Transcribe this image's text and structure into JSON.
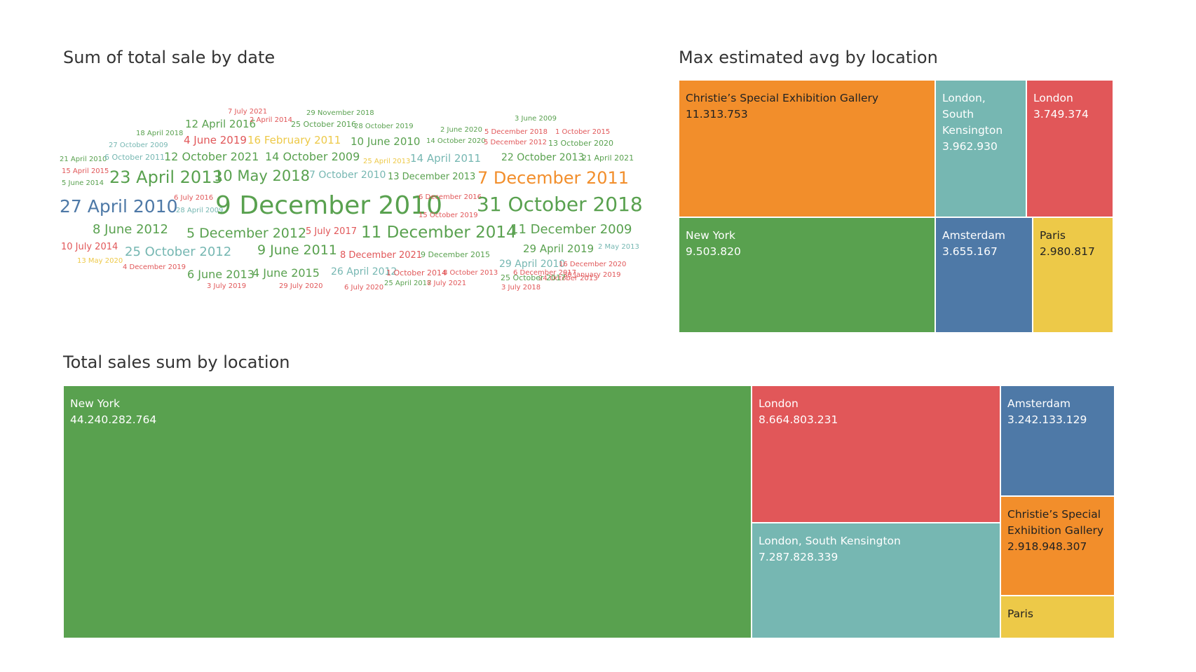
{
  "charts": {
    "word_cloud_title": "Sum of total sale by date",
    "tree1_title": "Max estimated avg by location",
    "tree2_title": "Total sales sum by location"
  },
  "colors": {
    "green": "#59a14f",
    "teal": "#76b7b2",
    "red": "#e15759",
    "orange": "#f28e2b",
    "blue": "#4e79a7",
    "yellow": "#edc948"
  },
  "chart_data": [
    {
      "type": "wordcloud",
      "title": "Sum of total sale by date",
      "words": [
        {
          "text": "7 July 2021",
          "color": "#e15759",
          "size": 10
        },
        {
          "text": "29 November 2018",
          "color": "#59a14f",
          "size": 10
        },
        {
          "text": "3 June 2009",
          "color": "#59a14f",
          "size": 10
        },
        {
          "text": "12 April 2016",
          "color": "#59a14f",
          "size": 15
        },
        {
          "text": "2 April 2014",
          "color": "#e15759",
          "size": 10
        },
        {
          "text": "25 October 2016",
          "color": "#59a14f",
          "size": 11
        },
        {
          "text": "28 October 2019",
          "color": "#59a14f",
          "size": 10
        },
        {
          "text": "18 April 2018",
          "color": "#59a14f",
          "size": 10
        },
        {
          "text": "2 June 2020",
          "color": "#59a14f",
          "size": 10
        },
        {
          "text": "5 December 2018",
          "color": "#e15759",
          "size": 10
        },
        {
          "text": "1 October 2015",
          "color": "#e15759",
          "size": 10
        },
        {
          "text": "4 June 2019",
          "color": "#e15759",
          "size": 15
        },
        {
          "text": "16 February 2011",
          "color": "#edc948",
          "size": 15
        },
        {
          "text": "10 June 2010",
          "color": "#59a14f",
          "size": 15
        },
        {
          "text": "14 October 2020",
          "color": "#59a14f",
          "size": 10
        },
        {
          "text": "5 December 2012",
          "color": "#e15759",
          "size": 10
        },
        {
          "text": "13 October 2020",
          "color": "#59a14f",
          "size": 11
        },
        {
          "text": "27 October 2009",
          "color": "#76b7b2",
          "size": 10
        },
        {
          "text": "21 April 2010",
          "color": "#59a14f",
          "size": 10
        },
        {
          "text": "6 October 2011",
          "color": "#76b7b2",
          "size": 11
        },
        {
          "text": "12 October 2021",
          "color": "#59a14f",
          "size": 16
        },
        {
          "text": "14 October 2009",
          "color": "#59a14f",
          "size": 16
        },
        {
          "text": "25 April 2013",
          "color": "#edc948",
          "size": 10
        },
        {
          "text": "14 April 2011",
          "color": "#76b7b2",
          "size": 15
        },
        {
          "text": "22 October 2013",
          "color": "#59a14f",
          "size": 14
        },
        {
          "text": "21 April 2021",
          "color": "#59a14f",
          "size": 11
        },
        {
          "text": "15 April 2015",
          "color": "#e15759",
          "size": 10
        },
        {
          "text": "5 June 2014",
          "color": "#59a14f",
          "size": 10
        },
        {
          "text": "23 April 2013",
          "color": "#59a14f",
          "size": 24
        },
        {
          "text": "10 May 2018",
          "color": "#59a14f",
          "size": 21
        },
        {
          "text": "7 October 2010",
          "color": "#76b7b2",
          "size": 14
        },
        {
          "text": "13 December 2013",
          "color": "#59a14f",
          "size": 13
        },
        {
          "text": "7 December 2011",
          "color": "#f28e2b",
          "size": 24
        },
        {
          "text": "27 April 2010",
          "color": "#4e79a7",
          "size": 25
        },
        {
          "text": "6 July 2016",
          "color": "#e15759",
          "size": 10
        },
        {
          "text": "28 April 2009",
          "color": "#76b7b2",
          "size": 10
        },
        {
          "text": "9 December 2010",
          "color": "#59a14f",
          "size": 36
        },
        {
          "text": "6 December 2016",
          "color": "#e15759",
          "size": 10
        },
        {
          "text": "15 October 2019",
          "color": "#e15759",
          "size": 10
        },
        {
          "text": "31 October 2018",
          "color": "#59a14f",
          "size": 28
        },
        {
          "text": "8 June 2012",
          "color": "#59a14f",
          "size": 18
        },
        {
          "text": "5 December 2012",
          "color": "#59a14f",
          "size": 19
        },
        {
          "text": "5 July 2017",
          "color": "#e15759",
          "size": 13
        },
        {
          "text": "11 December 2014",
          "color": "#59a14f",
          "size": 23
        },
        {
          "text": "11 December 2009",
          "color": "#59a14f",
          "size": 18
        },
        {
          "text": "10 July 2014",
          "color": "#e15759",
          "size": 13
        },
        {
          "text": "25 October 2012",
          "color": "#76b7b2",
          "size": 18
        },
        {
          "text": "9 June 2011",
          "color": "#59a14f",
          "size": 19
        },
        {
          "text": "8 December 2021",
          "color": "#e15759",
          "size": 13
        },
        {
          "text": "9 December 2015",
          "color": "#59a14f",
          "size": 11
        },
        {
          "text": "29 April 2019",
          "color": "#59a14f",
          "size": 15
        },
        {
          "text": "2 May 2013",
          "color": "#76b7b2",
          "size": 10
        },
        {
          "text": "13 May 2020",
          "color": "#edc948",
          "size": 10
        },
        {
          "text": "4 December 2019",
          "color": "#e15759",
          "size": 10
        },
        {
          "text": "29 April 2010",
          "color": "#76b7b2",
          "size": 14
        },
        {
          "text": "16 December 2020",
          "color": "#e15759",
          "size": 10
        },
        {
          "text": "6 June 2013",
          "color": "#59a14f",
          "size": 16
        },
        {
          "text": "4 June 2015",
          "color": "#59a14f",
          "size": 16
        },
        {
          "text": "26 April 2012",
          "color": "#76b7b2",
          "size": 14
        },
        {
          "text": "1 October 2014",
          "color": "#e15759",
          "size": 11
        },
        {
          "text": "8 October 2013",
          "color": "#e15759",
          "size": 10
        },
        {
          "text": "6 December 2017",
          "color": "#e15759",
          "size": 10
        },
        {
          "text": "30 January 2019",
          "color": "#e15759",
          "size": 10
        },
        {
          "text": "24 October 2013",
          "color": "#e15759",
          "size": 10
        },
        {
          "text": "25 October 2017",
          "color": "#59a14f",
          "size": 11
        },
        {
          "text": "3 July 2019",
          "color": "#e15759",
          "size": 10
        },
        {
          "text": "29 July 2020",
          "color": "#e15759",
          "size": 10
        },
        {
          "text": "6 July 2020",
          "color": "#e15759",
          "size": 10
        },
        {
          "text": "25 April 2017",
          "color": "#59a14f",
          "size": 10
        },
        {
          "text": "8 July 2021",
          "color": "#e15759",
          "size": 10
        },
        {
          "text": "3 July 2018",
          "color": "#e15759",
          "size": 10
        }
      ]
    },
    {
      "type": "treemap",
      "title": "Max estimated avg by location",
      "items": [
        {
          "label": "Christie’s Special Exhibition Gallery",
          "value": "11.313.753",
          "color": "#f28e2b"
        },
        {
          "label": "New York",
          "value": "9.503.820",
          "color": "#59a14f"
        },
        {
          "label": "London, South Kensington",
          "value": "3.962.930",
          "color": "#76b7b2"
        },
        {
          "label": "London",
          "value": "3.749.374",
          "color": "#e15759"
        },
        {
          "label": "Amsterdam",
          "value": "3.655.167",
          "color": "#4e79a7"
        },
        {
          "label": "Paris",
          "value": "2.980.817",
          "color": "#edc948"
        }
      ]
    },
    {
      "type": "treemap",
      "title": "Total sales sum by location",
      "items": [
        {
          "label": "New York",
          "value": "44.240.282.764",
          "color": "#59a14f"
        },
        {
          "label": "London",
          "value": "8.664.803.231",
          "color": "#e15759"
        },
        {
          "label": "London, South Kensington",
          "value": "7.287.828.339",
          "color": "#76b7b2"
        },
        {
          "label": "Amsterdam",
          "value": "3.242.133.129",
          "color": "#4e79a7"
        },
        {
          "label": "Christie’s Special Exhibition Gallery",
          "value": "2.918.948.307",
          "color": "#f28e2b"
        },
        {
          "label": "Paris",
          "value": "",
          "color": "#edc948"
        }
      ]
    }
  ]
}
